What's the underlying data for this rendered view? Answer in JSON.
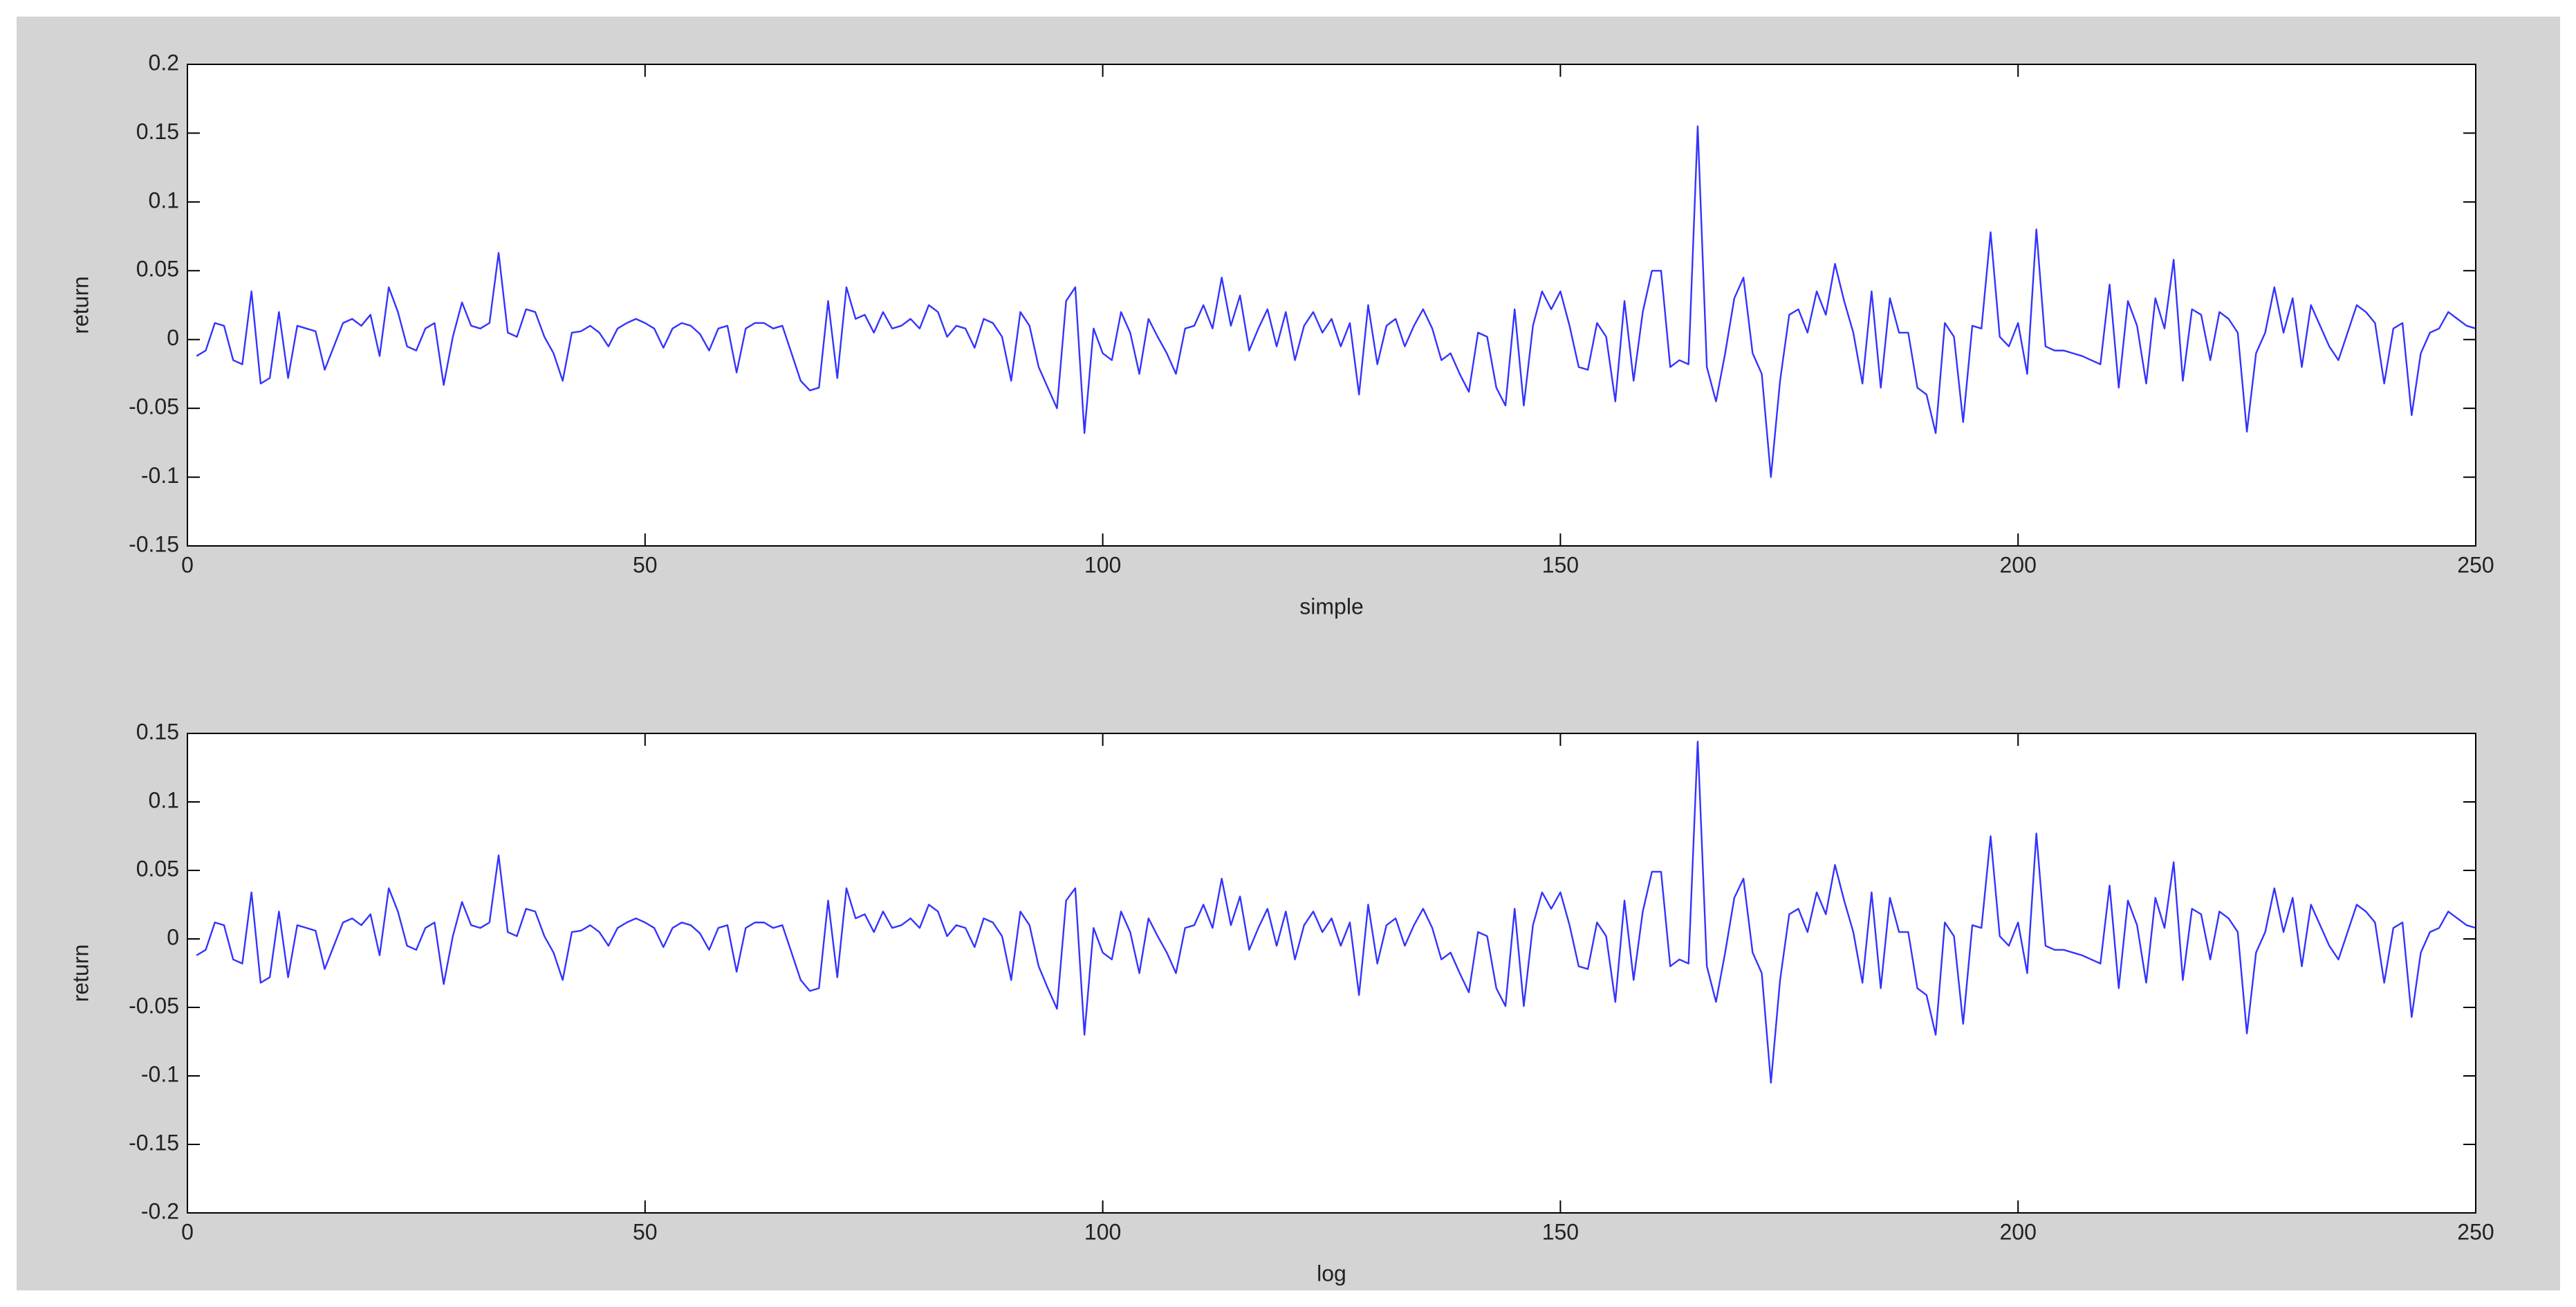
{
  "chart_data": [
    {
      "type": "line",
      "xlabel": "simple",
      "ylabel": "return",
      "color": "#3333ff",
      "xlim": [
        0,
        250
      ],
      "xticks": [
        0,
        50,
        100,
        150,
        200,
        250
      ],
      "ylim": [
        -0.15,
        0.2
      ],
      "yticks": [
        -0.15,
        -0.1,
        -0.05,
        0,
        0.05,
        0.1,
        0.15,
        0.2
      ],
      "x": [
        1,
        2,
        3,
        4,
        5,
        6,
        7,
        8,
        9,
        10,
        11,
        12,
        13,
        14,
        15,
        16,
        17,
        18,
        19,
        20,
        21,
        22,
        23,
        24,
        25,
        26,
        27,
        28,
        29,
        30,
        31,
        32,
        33,
        34,
        35,
        36,
        37,
        38,
        39,
        40,
        41,
        42,
        43,
        44,
        45,
        46,
        47,
        48,
        49,
        50,
        51,
        52,
        53,
        54,
        55,
        56,
        57,
        58,
        59,
        60,
        61,
        62,
        63,
        64,
        65,
        66,
        67,
        68,
        69,
        70,
        71,
        72,
        73,
        74,
        75,
        76,
        77,
        78,
        79,
        80,
        81,
        82,
        83,
        84,
        85,
        86,
        87,
        88,
        89,
        90,
        91,
        92,
        93,
        94,
        95,
        96,
        97,
        98,
        99,
        100,
        101,
        102,
        103,
        104,
        105,
        106,
        107,
        108,
        109,
        110,
        111,
        112,
        113,
        114,
        115,
        116,
        117,
        118,
        119,
        120,
        121,
        122,
        123,
        124,
        125,
        126,
        127,
        128,
        129,
        130,
        131,
        132,
        133,
        134,
        135,
        136,
        137,
        138,
        139,
        140,
        141,
        142,
        143,
        144,
        145,
        146,
        147,
        148,
        149,
        150,
        151,
        152,
        153,
        154,
        155,
        156,
        157,
        158,
        159,
        160,
        161,
        162,
        163,
        164,
        165,
        166,
        167,
        168,
        169,
        170,
        171,
        172,
        173,
        174,
        175,
        176,
        177,
        178,
        179,
        180,
        181,
        182,
        183,
        184,
        185,
        186,
        187,
        188,
        189,
        190,
        191,
        192,
        193,
        194,
        195,
        196,
        197,
        198,
        199,
        200,
        201,
        202,
        203,
        204,
        205,
        206,
        207,
        208,
        209,
        210,
        211,
        212,
        213,
        214,
        215,
        216,
        217,
        218,
        219,
        220,
        221,
        222,
        223,
        224,
        225,
        226,
        227,
        228,
        229,
        230,
        231,
        232,
        233,
        234,
        235,
        236,
        237,
        238,
        239,
        240,
        241,
        242,
        243,
        244,
        245,
        246,
        247,
        248,
        249,
        250
      ],
      "values": [
        -0.012,
        -0.008,
        0.012,
        0.01,
        -0.015,
        -0.018,
        0.035,
        -0.032,
        -0.028,
        0.02,
        -0.028,
        0.01,
        0.008,
        0.006,
        -0.022,
        -0.005,
        0.012,
        0.015,
        0.01,
        0.018,
        -0.012,
        0.038,
        0.02,
        -0.005,
        -0.008,
        0.008,
        0.012,
        -0.033,
        0.002,
        0.027,
        0.01,
        0.008,
        0.012,
        0.063,
        0.005,
        0.002,
        0.022,
        0.02,
        0.002,
        -0.01,
        -0.03,
        0.005,
        0.006,
        0.01,
        0.005,
        -0.005,
        0.008,
        0.012,
        0.015,
        0.012,
        0.008,
        -0.006,
        0.008,
        0.012,
        0.01,
        0.004,
        -0.008,
        0.008,
        0.01,
        -0.024,
        0.008,
        0.012,
        0.012,
        0.008,
        0.01,
        -0.01,
        -0.03,
        -0.037,
        -0.035,
        0.028,
        -0.028,
        0.038,
        0.015,
        0.018,
        0.005,
        0.02,
        0.008,
        0.01,
        0.015,
        0.008,
        0.025,
        0.02,
        0.002,
        0.01,
        0.008,
        -0.006,
        0.015,
        0.012,
        0.002,
        -0.03,
        0.02,
        0.01,
        -0.02,
        -0.035,
        -0.05,
        0.028,
        0.038,
        -0.068,
        0.008,
        -0.01,
        -0.015,
        0.02,
        0.005,
        -0.025,
        0.015,
        0.002,
        -0.01,
        -0.025,
        0.008,
        0.01,
        0.025,
        0.008,
        0.045,
        0.01,
        0.032,
        -0.008,
        0.008,
        0.022,
        -0.005,
        0.02,
        -0.015,
        0.01,
        0.02,
        0.005,
        0.015,
        -0.005,
        0.012,
        -0.04,
        0.025,
        -0.018,
        0.01,
        0.015,
        -0.005,
        0.01,
        0.022,
        0.008,
        -0.015,
        -0.01,
        -0.025,
        -0.038,
        0.005,
        0.002,
        -0.035,
        -0.048,
        0.022,
        -0.048,
        0.01,
        0.035,
        0.022,
        0.035,
        0.01,
        -0.02,
        -0.022,
        0.012,
        0.002,
        -0.045,
        0.028,
        -0.03,
        0.02,
        0.05,
        0.05,
        -0.02,
        -0.015,
        -0.018,
        0.155,
        -0.02,
        -0.045,
        -0.01,
        0.03,
        0.045,
        -0.01,
        -0.025,
        -0.1,
        -0.03,
        0.018,
        0.022,
        0.005,
        0.035,
        0.018,
        0.055,
        0.028,
        0.005,
        -0.032,
        0.035,
        -0.035,
        0.03,
        0.005,
        0.005,
        -0.035,
        -0.04,
        -0.068,
        0.012,
        0.002,
        -0.06,
        0.01,
        0.008,
        0.078,
        0.002,
        -0.005,
        0.012,
        -0.025,
        0.08,
        -0.005,
        -0.008,
        -0.008,
        -0.01,
        -0.012,
        -0.015,
        -0.018,
        0.04,
        -0.035,
        0.028,
        0.01,
        -0.032,
        0.03,
        0.008,
        0.058,
        -0.03,
        0.022,
        0.018,
        -0.015,
        0.02,
        0.015,
        0.005,
        -0.067,
        -0.01,
        0.005,
        0.038,
        0.005,
        0.03,
        -0.02,
        0.025,
        0.01,
        -0.005,
        -0.015,
        0.005,
        0.025,
        0.02,
        0.012,
        -0.032,
        0.008,
        0.012,
        -0.055,
        -0.01,
        0.005,
        0.008,
        0.02,
        0.015,
        0.01,
        0.008
      ]
    },
    {
      "type": "line",
      "xlabel": "log",
      "ylabel": "return",
      "color": "#3333ff",
      "xlim": [
        0,
        250
      ],
      "xticks": [
        0,
        50,
        100,
        150,
        200,
        250
      ],
      "ylim": [
        -0.2,
        0.15
      ],
      "yticks": [
        -0.2,
        -0.15,
        -0.1,
        -0.05,
        0,
        0.05,
        0.1,
        0.15
      ],
      "x": [
        1,
        2,
        3,
        4,
        5,
        6,
        7,
        8,
        9,
        10,
        11,
        12,
        13,
        14,
        15,
        16,
        17,
        18,
        19,
        20,
        21,
        22,
        23,
        24,
        25,
        26,
        27,
        28,
        29,
        30,
        31,
        32,
        33,
        34,
        35,
        36,
        37,
        38,
        39,
        40,
        41,
        42,
        43,
        44,
        45,
        46,
        47,
        48,
        49,
        50,
        51,
        52,
        53,
        54,
        55,
        56,
        57,
        58,
        59,
        60,
        61,
        62,
        63,
        64,
        65,
        66,
        67,
        68,
        69,
        70,
        71,
        72,
        73,
        74,
        75,
        76,
        77,
        78,
        79,
        80,
        81,
        82,
        83,
        84,
        85,
        86,
        87,
        88,
        89,
        90,
        91,
        92,
        93,
        94,
        95,
        96,
        97,
        98,
        99,
        100,
        101,
        102,
        103,
        104,
        105,
        106,
        107,
        108,
        109,
        110,
        111,
        112,
        113,
        114,
        115,
        116,
        117,
        118,
        119,
        120,
        121,
        122,
        123,
        124,
        125,
        126,
        127,
        128,
        129,
        130,
        131,
        132,
        133,
        134,
        135,
        136,
        137,
        138,
        139,
        140,
        141,
        142,
        143,
        144,
        145,
        146,
        147,
        148,
        149,
        150,
        151,
        152,
        153,
        154,
        155,
        156,
        157,
        158,
        159,
        160,
        161,
        162,
        163,
        164,
        165,
        166,
        167,
        168,
        169,
        170,
        171,
        172,
        173,
        174,
        175,
        176,
        177,
        178,
        179,
        180,
        181,
        182,
        183,
        184,
        185,
        186,
        187,
        188,
        189,
        190,
        191,
        192,
        193,
        194,
        195,
        196,
        197,
        198,
        199,
        200,
        201,
        202,
        203,
        204,
        205,
        206,
        207,
        208,
        209,
        210,
        211,
        212,
        213,
        214,
        215,
        216,
        217,
        218,
        219,
        220,
        221,
        222,
        223,
        224,
        225,
        226,
        227,
        228,
        229,
        230,
        231,
        232,
        233,
        234,
        235,
        236,
        237,
        238,
        239,
        240,
        241,
        242,
        243,
        244,
        245,
        246,
        247,
        248,
        249,
        250
      ],
      "values": [
        -0.012,
        -0.008,
        0.012,
        0.01,
        -0.015,
        -0.018,
        0.034,
        -0.032,
        -0.028,
        0.02,
        -0.028,
        0.01,
        0.008,
        0.006,
        -0.022,
        -0.005,
        0.012,
        0.015,
        0.01,
        0.018,
        -0.012,
        0.037,
        0.02,
        -0.005,
        -0.008,
        0.008,
        0.012,
        -0.033,
        0.002,
        0.027,
        0.01,
        0.008,
        0.012,
        0.061,
        0.005,
        0.002,
        0.022,
        0.02,
        0.002,
        -0.01,
        -0.03,
        0.005,
        0.006,
        0.01,
        0.005,
        -0.005,
        0.008,
        0.012,
        0.015,
        0.012,
        0.008,
        -0.006,
        0.008,
        0.012,
        0.01,
        0.004,
        -0.008,
        0.008,
        0.01,
        -0.024,
        0.008,
        0.012,
        0.012,
        0.008,
        0.01,
        -0.01,
        -0.03,
        -0.038,
        -0.036,
        0.028,
        -0.028,
        0.037,
        0.015,
        0.018,
        0.005,
        0.02,
        0.008,
        0.01,
        0.015,
        0.008,
        0.025,
        0.02,
        0.002,
        0.01,
        0.008,
        -0.006,
        0.015,
        0.012,
        0.002,
        -0.03,
        0.02,
        0.01,
        -0.02,
        -0.036,
        -0.051,
        0.028,
        0.037,
        -0.07,
        0.008,
        -0.01,
        -0.015,
        0.02,
        0.005,
        -0.025,
        0.015,
        0.002,
        -0.01,
        -0.025,
        0.008,
        0.01,
        0.025,
        0.008,
        0.044,
        0.01,
        0.031,
        -0.008,
        0.008,
        0.022,
        -0.005,
        0.02,
        -0.015,
        0.01,
        0.02,
        0.005,
        0.015,
        -0.005,
        0.012,
        -0.041,
        0.025,
        -0.018,
        0.01,
        0.015,
        -0.005,
        0.01,
        0.022,
        0.008,
        -0.015,
        -0.01,
        -0.025,
        -0.039,
        0.005,
        0.002,
        -0.036,
        -0.049,
        0.022,
        -0.049,
        0.01,
        0.034,
        0.022,
        0.034,
        0.01,
        -0.02,
        -0.022,
        0.012,
        0.002,
        -0.046,
        0.028,
        -0.03,
        0.02,
        0.049,
        0.049,
        -0.02,
        -0.015,
        -0.018,
        0.144,
        -0.02,
        -0.046,
        -0.01,
        0.03,
        0.044,
        -0.01,
        -0.025,
        -0.105,
        -0.03,
        0.018,
        0.022,
        0.005,
        0.034,
        0.018,
        0.054,
        0.028,
        0.005,
        -0.032,
        0.034,
        -0.036,
        0.03,
        0.005,
        0.005,
        -0.036,
        -0.041,
        -0.07,
        0.012,
        0.002,
        -0.062,
        0.01,
        0.008,
        0.075,
        0.002,
        -0.005,
        0.012,
        -0.025,
        0.077,
        -0.005,
        -0.008,
        -0.008,
        -0.01,
        -0.012,
        -0.015,
        -0.018,
        0.039,
        -0.036,
        0.028,
        0.01,
        -0.032,
        0.03,
        0.008,
        0.056,
        -0.03,
        0.022,
        0.018,
        -0.015,
        0.02,
        0.015,
        0.005,
        -0.069,
        -0.01,
        0.005,
        0.037,
        0.005,
        0.03,
        -0.02,
        0.025,
        0.01,
        -0.005,
        -0.015,
        0.005,
        0.025,
        0.02,
        0.012,
        -0.032,
        0.008,
        0.012,
        -0.057,
        -0.01,
        0.005,
        0.008,
        0.02,
        0.015,
        0.01,
        0.008
      ]
    }
  ]
}
